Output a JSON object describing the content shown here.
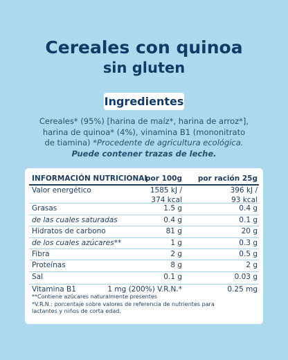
{
  "header": {
    "title": "Cereales con quinoa",
    "subtitle": "sin gluten"
  },
  "ingredients": {
    "heading": "Ingredientes",
    "text": "Cereales* (95%) [harina de maíz*, harina de arroz*], harina de quinoa* (4%), vinamina B1 (mononitrato de tiamina)",
    "note": "*Procedente de agricultura ecológica.",
    "allergen": "Puede contener trazas de leche."
  },
  "table": {
    "header": [
      "INFORMACIÓN NUTRICIONAL",
      "por 100g",
      "por ración 25g"
    ],
    "rows": [
      [
        "Valor energético",
        [
          "1585 kJ /",
          "374 kcal"
        ],
        [
          "396 kJ /",
          "93 kcal"
        ]
      ],
      [
        "Grasas",
        "1.5 g",
        "0.4 g"
      ],
      [
        "de las cuales saturadas",
        "0.4 g",
        "0.1 g"
      ],
      [
        "Hidratos de carbono",
        "81 g",
        "20 g"
      ],
      [
        "de los cuales azúcares**",
        "1 g",
        "0.3 g"
      ],
      [
        "Fibra",
        "2 g",
        "0.5 g"
      ],
      [
        "Proteínas",
        "8 g",
        "2 g"
      ],
      [
        "Sal",
        "0.1 g",
        "0.03 g"
      ],
      [
        "Vitamina B1",
        "1 mg (200%) V.R.N.*",
        "0.25 mg"
      ]
    ],
    "footnotes": [
      "**Contiene azúcares naturalmente presentes",
      "*V.R.N.: porcentaje sobre valores de referencia de nutrientes para lactantes y niños de corta edad."
    ]
  }
}
